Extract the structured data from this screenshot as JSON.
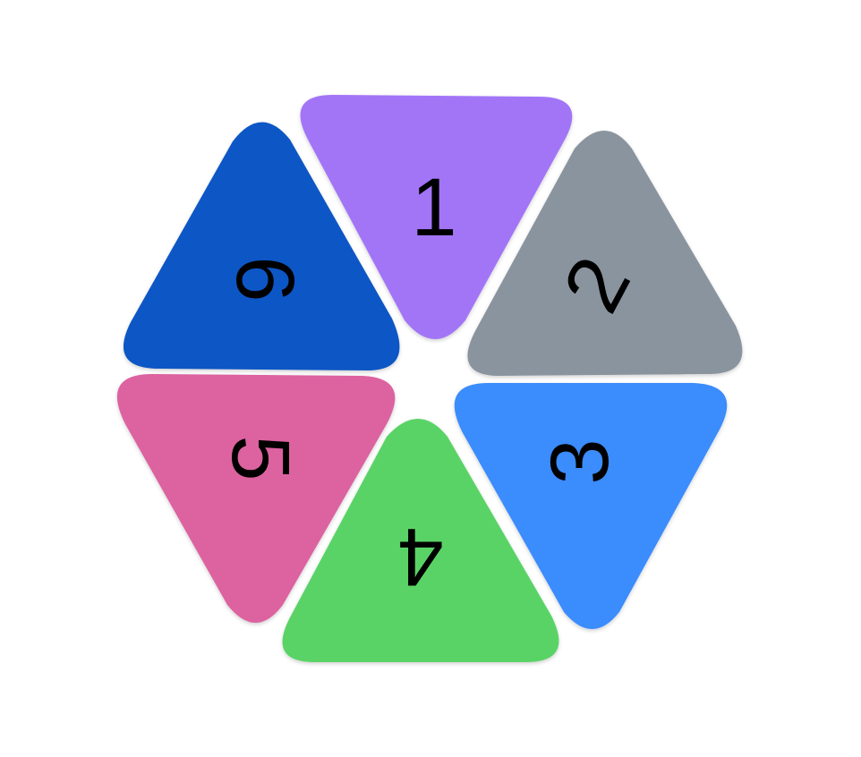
{
  "triangles": [
    {
      "label": "1",
      "color": "#A274F7"
    },
    {
      "label": "2",
      "color": "#8A949E"
    },
    {
      "label": "3",
      "color": "#3A8CFC"
    },
    {
      "label": "4",
      "color": "#5AD366"
    },
    {
      "label": "5",
      "color": "#DC62A0"
    },
    {
      "label": "6",
      "color": "#1056C5"
    }
  ]
}
